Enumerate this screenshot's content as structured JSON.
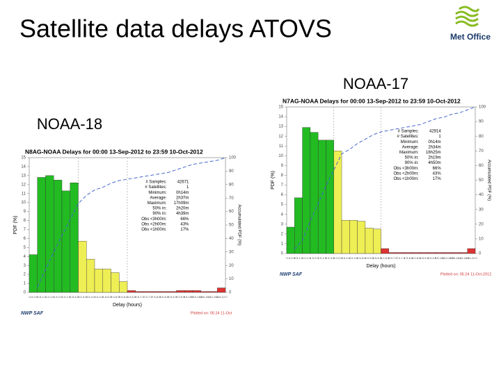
{
  "slide": {
    "title": "Satellite data delays ATOVS",
    "logo": "Met Office"
  },
  "chart_data": [
    {
      "type": "bar",
      "heading": "NOAA-17",
      "title": "N7AG-NOAA Delays for 00:00 13-Sep-2012 to 23:59 10-Oct-2012",
      "xlabel": "Delay (hours)",
      "ylabel": "PDF (%)",
      "y2label": "Accumulated PDF (%)",
      "categories": [
        "0.0-0.5",
        "0.5-1.0",
        "1.0-1.5",
        "1.5-2.0",
        "2.0-2.5",
        "2.5-3.0",
        "3.0-3.5",
        "3.5-4.0",
        "4.0-4.5",
        "4.5-5.0",
        "5.0-5.5",
        "5.5-6.0",
        "6.0-6.5",
        "6.5-7.0",
        "7.0-7.5",
        "7.5-8.0",
        "8.0-8.5",
        "8.5-9.0",
        "9.0-9.5",
        "9.5-10.0",
        "10.0-10.5",
        "10.5-11.0",
        "11.0-11.5",
        "11.5-12.0"
      ],
      "values": [
        2.7,
        5.7,
        12.9,
        12.4,
        11.6,
        11.6,
        10.5,
        3.4,
        3.4,
        3.3,
        2.6,
        2.5,
        0.5,
        0.1,
        0.1,
        0.1,
        0.1,
        0.1,
        0.1,
        0.1,
        0.1,
        0.1,
        0.1,
        0.5
      ],
      "colors": [
        "#22bb22",
        "#22bb22",
        "#22bb22",
        "#22bb22",
        "#22bb22",
        "#22bb22",
        "#eeee55",
        "#eeee55",
        "#eeee55",
        "#eeee55",
        "#eeee55",
        "#eeee55",
        "#dd3333",
        "#dd3333",
        "#dd3333",
        "#dd3333",
        "#dd3333",
        "#dd3333",
        "#dd3333",
        "#dd3333",
        "#dd3333",
        "#dd3333",
        "#dd3333",
        "#dd3333"
      ],
      "cumulative": {
        "color": "#4466cc",
        "axis": "y2",
        "values": [
          3,
          9,
          22,
          34,
          46,
          57,
          68,
          71,
          75,
          78,
          81,
          83,
          84,
          85,
          86,
          87,
          88,
          90,
          92,
          93,
          95,
          96,
          98,
          100
        ]
      },
      "ylim": [
        0,
        15
      ],
      "yticks": [
        0,
        1,
        2,
        3,
        4,
        5,
        6,
        7,
        8,
        9,
        10,
        11,
        12,
        13,
        14,
        15
      ],
      "y2lim": [
        0,
        100
      ],
      "y2ticks": [
        0,
        10,
        20,
        30,
        40,
        50,
        60,
        70,
        80,
        90,
        100
      ],
      "stats": [
        [
          "# Samples:",
          "42914"
        ],
        [
          "# Satellites:",
          "1"
        ],
        [
          "Minimum:",
          "0h14m"
        ],
        [
          "Average:",
          "2h34m"
        ],
        [
          "Maximum:",
          "16h25m"
        ],
        [
          "50% in:",
          "2h19m"
        ],
        [
          "90% in:",
          "4h50m"
        ],
        [
          "Obs <3h00m:",
          "66%"
        ],
        [
          "Obs <2h00m:",
          "43%"
        ],
        [
          "Obs <1h00m:",
          "17%"
        ]
      ],
      "footer": "NWP SAF",
      "plotted": "Plotted on: 05:24 11-Oct-2012"
    },
    {
      "type": "bar",
      "heading": "NOAA-18",
      "title": "N8AG-NOAA Delays for 00:00 13-Sep-2012 to 23:59 10-Oct-2012",
      "xlabel": "Delay (hours)",
      "ylabel": "PDF (%)",
      "y2label": "Accumulated PDF (%)",
      "categories": [
        "0.0-0.5",
        "0.5-1.0",
        "1.0-1.5",
        "1.5-2.0",
        "2.0-2.5",
        "2.5-3.0",
        "3.0-3.5",
        "3.5-4.0",
        "4.0-4.5",
        "4.5-5.0",
        "5.0-5.5",
        "5.5-6.0",
        "6.0-6.5",
        "6.5-7.0",
        "7.0-7.5",
        "7.5-8.0",
        "8.0-8.5",
        "8.5-9.0",
        "9.0-9.5",
        "9.5-10.0",
        "10.0-10.5",
        "10.5-11.0",
        "11.0-11.5",
        "11.5-12.0"
      ],
      "values": [
        4.2,
        12.8,
        13.0,
        12.5,
        11.3,
        12.2,
        5.7,
        3.7,
        2.6,
        2.6,
        2.2,
        1.2,
        0.2,
        0.1,
        0.1,
        0.1,
        0.1,
        0.1,
        0.2,
        0.2,
        0.2,
        0.1,
        0.1,
        0.5
      ],
      "colors": [
        "#22bb22",
        "#22bb22",
        "#22bb22",
        "#22bb22",
        "#22bb22",
        "#22bb22",
        "#eeee55",
        "#eeee55",
        "#eeee55",
        "#eeee55",
        "#eeee55",
        "#eeee55",
        "#dd3333",
        "#dd3333",
        "#dd3333",
        "#dd3333",
        "#dd3333",
        "#dd3333",
        "#dd3333",
        "#dd3333",
        "#dd3333",
        "#dd3333",
        "#dd3333",
        "#dd3333"
      ],
      "cumulative": {
        "color": "#4466cc",
        "axis": "y2",
        "values": [
          4,
          17,
          30,
          42,
          54,
          66,
          72,
          76,
          78,
          81,
          83,
          84,
          85,
          86,
          87,
          88,
          89,
          91,
          93,
          95,
          96,
          97,
          98,
          100
        ]
      },
      "ylim": [
        0,
        15
      ],
      "yticks": [
        0,
        1,
        2,
        3,
        4,
        5,
        6,
        7,
        8,
        9,
        10,
        11,
        12,
        13,
        14,
        15
      ],
      "y2lim": [
        0,
        100
      ],
      "y2ticks": [
        0,
        10,
        20,
        30,
        40,
        50,
        60,
        70,
        80,
        90,
        100
      ],
      "stats": [
        [
          "# Samples:",
          "42671"
        ],
        [
          "# Satellites:",
          "1"
        ],
        [
          "Minimum:",
          "0h14m"
        ],
        [
          "Average:",
          "2h37m"
        ],
        [
          "Maximum:",
          "17h09m"
        ],
        [
          "50% in:",
          "2h20m"
        ],
        [
          "90% in:",
          "4h39m"
        ],
        [
          "Obs <3h00m:",
          "66%"
        ],
        [
          "Obs <2h00m:",
          "43%"
        ],
        [
          "Obs <1h00m:",
          "17%"
        ]
      ],
      "footer": "NWP SAF",
      "plotted": "Plotted on: 05:24 11-Oct"
    }
  ]
}
